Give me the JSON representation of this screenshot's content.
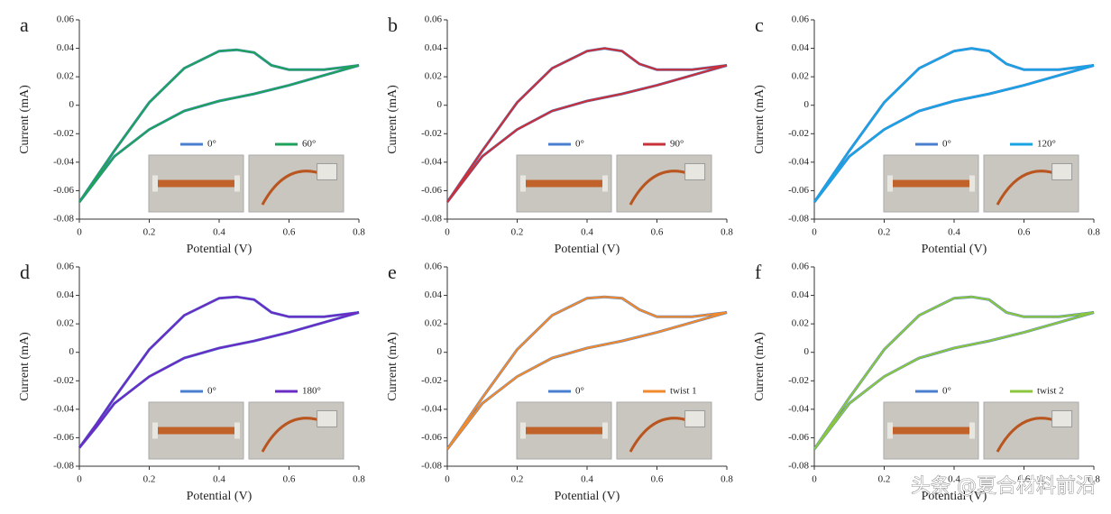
{
  "chart_data": [
    {
      "type": "line",
      "label": "a",
      "xlabel": "Potential (V)",
      "ylabel": "Current (mA)",
      "x": [
        0,
        0.05,
        0.1,
        0.2,
        0.3,
        0.4,
        0.45,
        0.5,
        0.55,
        0.6,
        0.7,
        0.8,
        0.7,
        0.6,
        0.5,
        0.4,
        0.3,
        0.2,
        0.1,
        0.05,
        0
      ],
      "xlim": [
        0,
        0.8
      ],
      "xticks": [
        0,
        0.2,
        0.4,
        0.6,
        0.8
      ],
      "ylim": [
        -0.08,
        0.06
      ],
      "yticks": [
        0.06,
        0.04,
        0.02,
        0,
        -0.02,
        -0.04,
        -0.06,
        -0.08
      ],
      "series": [
        {
          "name": "0°",
          "color": "#4a7fd0",
          "values": [
            -0.068,
            -0.05,
            -0.032,
            0.002,
            0.026,
            0.038,
            0.039,
            0.037,
            0.028,
            0.025,
            0.025,
            0.028,
            0.021,
            0.014,
            0.008,
            0.003,
            -0.004,
            -0.017,
            -0.036,
            -0.052,
            -0.068
          ]
        },
        {
          "name": "60°",
          "color": "#1fa25a",
          "values": [
            -0.068,
            -0.05,
            -0.032,
            0.002,
            0.026,
            0.038,
            0.039,
            0.037,
            0.028,
            0.025,
            0.025,
            0.028,
            0.021,
            0.014,
            0.008,
            0.003,
            -0.004,
            -0.017,
            -0.036,
            -0.052,
            -0.068
          ]
        }
      ]
    },
    {
      "type": "line",
      "label": "b",
      "xlabel": "Potential (V)",
      "ylabel": "Current (mA)",
      "x": [
        0,
        0.05,
        0.1,
        0.2,
        0.3,
        0.4,
        0.45,
        0.5,
        0.55,
        0.6,
        0.7,
        0.8,
        0.7,
        0.6,
        0.5,
        0.4,
        0.3,
        0.2,
        0.1,
        0.05,
        0
      ],
      "xlim": [
        0,
        0.8
      ],
      "xticks": [
        0,
        0.2,
        0.4,
        0.6,
        0.8
      ],
      "ylim": [
        -0.08,
        0.06
      ],
      "yticks": [
        0.06,
        0.04,
        0.02,
        0,
        -0.02,
        -0.04,
        -0.06,
        -0.08
      ],
      "series": [
        {
          "name": "0°",
          "color": "#4a7fd0",
          "values": [
            -0.068,
            -0.05,
            -0.032,
            0.002,
            0.026,
            0.038,
            0.04,
            0.038,
            0.029,
            0.025,
            0.025,
            0.028,
            0.021,
            0.014,
            0.008,
            0.003,
            -0.004,
            -0.017,
            -0.036,
            -0.052,
            -0.068
          ]
        },
        {
          "name": "90°",
          "color": "#c8313a",
          "values": [
            -0.068,
            -0.05,
            -0.032,
            0.002,
            0.026,
            0.038,
            0.04,
            0.038,
            0.029,
            0.025,
            0.025,
            0.028,
            0.021,
            0.014,
            0.008,
            0.003,
            -0.004,
            -0.017,
            -0.036,
            -0.052,
            -0.068
          ]
        }
      ]
    },
    {
      "type": "line",
      "label": "c",
      "xlabel": "Potential (V)",
      "ylabel": "Current (mA)",
      "x": [
        0,
        0.05,
        0.1,
        0.2,
        0.3,
        0.4,
        0.45,
        0.5,
        0.55,
        0.6,
        0.7,
        0.8,
        0.7,
        0.6,
        0.5,
        0.4,
        0.3,
        0.2,
        0.1,
        0.05,
        0
      ],
      "xlim": [
        0,
        0.8
      ],
      "xticks": [
        0,
        0.2,
        0.4,
        0.6,
        0.8
      ],
      "ylim": [
        -0.08,
        0.06
      ],
      "yticks": [
        0.06,
        0.04,
        0.02,
        0,
        -0.02,
        -0.04,
        -0.06,
        -0.08
      ],
      "series": [
        {
          "name": "0°",
          "color": "#4a7fd0",
          "values": [
            -0.068,
            -0.05,
            -0.032,
            0.002,
            0.026,
            0.038,
            0.04,
            0.038,
            0.029,
            0.025,
            0.025,
            0.028,
            0.021,
            0.014,
            0.008,
            0.003,
            -0.004,
            -0.017,
            -0.036,
            -0.052,
            -0.068
          ]
        },
        {
          "name": "120°",
          "color": "#1aa3e3",
          "values": [
            -0.068,
            -0.05,
            -0.032,
            0.002,
            0.026,
            0.038,
            0.04,
            0.038,
            0.029,
            0.025,
            0.025,
            0.028,
            0.021,
            0.014,
            0.008,
            0.003,
            -0.004,
            -0.017,
            -0.036,
            -0.052,
            -0.068
          ]
        }
      ]
    },
    {
      "type": "line",
      "label": "d",
      "xlabel": "Potential (V)",
      "ylabel": "Current (mA)",
      "x": [
        0,
        0.05,
        0.1,
        0.2,
        0.3,
        0.4,
        0.45,
        0.5,
        0.55,
        0.6,
        0.7,
        0.8,
        0.7,
        0.6,
        0.5,
        0.4,
        0.3,
        0.2,
        0.1,
        0.05,
        0
      ],
      "xlim": [
        0,
        0.8
      ],
      "xticks": [
        0,
        0.2,
        0.4,
        0.6,
        0.8
      ],
      "ylim": [
        -0.08,
        0.06
      ],
      "yticks": [
        0.06,
        0.04,
        0.02,
        0,
        -0.02,
        -0.04,
        -0.06,
        -0.08
      ],
      "series": [
        {
          "name": "0°",
          "color": "#4a7fd0",
          "values": [
            -0.067,
            -0.05,
            -0.032,
            0.002,
            0.026,
            0.038,
            0.039,
            0.037,
            0.028,
            0.025,
            0.025,
            0.028,
            0.021,
            0.014,
            0.008,
            0.003,
            -0.004,
            -0.017,
            -0.036,
            -0.052,
            -0.067
          ]
        },
        {
          "name": "180°",
          "color": "#6a2cc4",
          "values": [
            -0.067,
            -0.05,
            -0.032,
            0.002,
            0.026,
            0.038,
            0.039,
            0.037,
            0.028,
            0.025,
            0.025,
            0.028,
            0.021,
            0.014,
            0.008,
            0.003,
            -0.004,
            -0.017,
            -0.036,
            -0.052,
            -0.067
          ]
        }
      ]
    },
    {
      "type": "line",
      "label": "e",
      "xlabel": "Potential (V)",
      "ylabel": "Current (mA)",
      "x": [
        0,
        0.05,
        0.1,
        0.2,
        0.3,
        0.4,
        0.45,
        0.5,
        0.55,
        0.6,
        0.7,
        0.8,
        0.7,
        0.6,
        0.5,
        0.4,
        0.3,
        0.2,
        0.1,
        0.05,
        0
      ],
      "xlim": [
        0,
        0.8
      ],
      "xticks": [
        0,
        0.2,
        0.4,
        0.6,
        0.8
      ],
      "ylim": [
        -0.08,
        0.06
      ],
      "yticks": [
        0.06,
        0.04,
        0.02,
        0,
        -0.02,
        -0.04,
        -0.06,
        -0.08
      ],
      "series": [
        {
          "name": "0°",
          "color": "#4a7fd0",
          "values": [
            -0.068,
            -0.05,
            -0.032,
            0.002,
            0.026,
            0.038,
            0.039,
            0.038,
            0.03,
            0.025,
            0.025,
            0.028,
            0.021,
            0.014,
            0.008,
            0.003,
            -0.004,
            -0.017,
            -0.036,
            -0.052,
            -0.068
          ]
        },
        {
          "name": "twist 1",
          "color": "#f08a2c",
          "values": [
            -0.068,
            -0.05,
            -0.032,
            0.002,
            0.026,
            0.038,
            0.039,
            0.038,
            0.03,
            0.025,
            0.025,
            0.028,
            0.021,
            0.014,
            0.008,
            0.003,
            -0.004,
            -0.017,
            -0.036,
            -0.052,
            -0.068
          ]
        }
      ]
    },
    {
      "type": "line",
      "label": "f",
      "xlabel": "Potential (V)",
      "ylabel": "Current (mA)",
      "x": [
        0,
        0.05,
        0.1,
        0.2,
        0.3,
        0.4,
        0.45,
        0.5,
        0.55,
        0.6,
        0.7,
        0.8,
        0.7,
        0.6,
        0.5,
        0.4,
        0.3,
        0.2,
        0.1,
        0.05,
        0
      ],
      "xlim": [
        0,
        0.8
      ],
      "xticks": [
        0,
        0.2,
        0.4,
        0.6,
        0.8
      ],
      "ylim": [
        -0.08,
        0.06
      ],
      "yticks": [
        0.06,
        0.04,
        0.02,
        0,
        -0.02,
        -0.04,
        -0.06,
        -0.08
      ],
      "series": [
        {
          "name": "0°",
          "color": "#4a7fd0",
          "values": [
            -0.068,
            -0.05,
            -0.032,
            0.002,
            0.026,
            0.038,
            0.039,
            0.037,
            0.028,
            0.025,
            0.025,
            0.028,
            0.021,
            0.014,
            0.008,
            0.003,
            -0.004,
            -0.017,
            -0.036,
            -0.052,
            -0.068
          ]
        },
        {
          "name": "twist 2",
          "color": "#8cc63f",
          "values": [
            -0.068,
            -0.05,
            -0.032,
            0.002,
            0.026,
            0.038,
            0.039,
            0.037,
            0.028,
            0.025,
            0.025,
            0.028,
            0.021,
            0.014,
            0.008,
            0.003,
            -0.004,
            -0.017,
            -0.036,
            -0.052,
            -0.068
          ]
        }
      ]
    }
  ],
  "watermark": "头条 @夏合材料前沿"
}
